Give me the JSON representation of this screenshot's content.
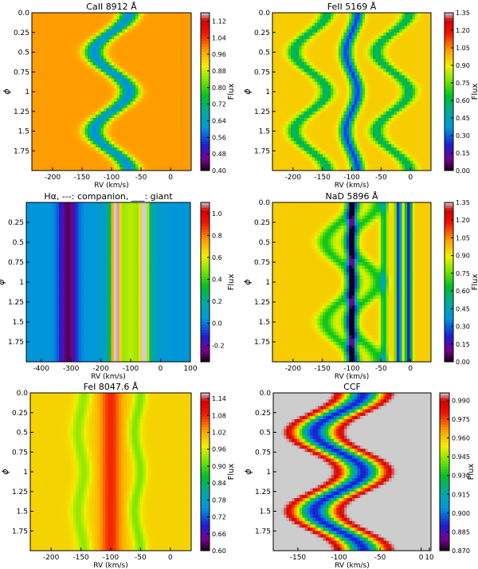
{
  "chart_data": [
    {
      "type": "heatmap",
      "title": "CaII 8912 Å",
      "xlabel": "RV (km/s)",
      "ylabel": "ϕ",
      "xlim": [
        -235,
        35
      ],
      "ylim": [
        0,
        2
      ],
      "xticks": [
        "-200",
        "-150",
        "-100",
        "-50",
        "0"
      ],
      "xtick_values": [
        -200,
        -150,
        -100,
        -50,
        0
      ],
      "yticks": [
        "0.0",
        "0.25",
        "0.5",
        "0.75",
        "1",
        "1.25",
        "1.5",
        "1.75"
      ],
      "colorbar_label": "Flux",
      "colorbar_ticks": [
        "0.40",
        "0.48",
        "0.56",
        "0.64",
        "0.72",
        "0.80",
        "0.88",
        "0.96",
        "1.04",
        "1.12"
      ],
      "colorbar_range": [
        0.4,
        1.16
      ],
      "features": [
        {
          "kind": "absorption",
          "rv_mean": -100,
          "rv_amp": 30,
          "phase_offset": 0.0,
          "width": 16,
          "value": 0.6
        }
      ],
      "background": 0.98
    },
    {
      "type": "heatmap",
      "title": "FeII 5169 Å",
      "xlabel": "RV (km/s)",
      "ylabel": "ϕ",
      "xlim": [
        -235,
        35
      ],
      "ylim": [
        0,
        2
      ],
      "xticks": [
        "-200",
        "-150",
        "-100",
        "-50",
        "0"
      ],
      "xtick_values": [
        -200,
        -150,
        -100,
        -50,
        0
      ],
      "yticks": [
        "0.0",
        "0.25",
        "0.5",
        "0.75",
        "1",
        "1.25",
        "1.5",
        "1.75"
      ],
      "colorbar_label": "Flux",
      "colorbar_ticks": [
        "0.00",
        "0.15",
        "0.30",
        "0.45",
        "0.60",
        "0.75",
        "0.90",
        "1.05",
        "1.20",
        "1.35"
      ],
      "colorbar_range": [
        0.0,
        1.35
      ],
      "features": [
        {
          "kind": "absorption",
          "rv_mean": -170,
          "rv_amp": 28,
          "phase_offset": 0.0,
          "width": 12,
          "value": 0.55
        },
        {
          "kind": "absorption",
          "rv_mean": -100,
          "rv_amp": 10,
          "phase_offset": 0.0,
          "width": 10,
          "value": 0.25
        },
        {
          "kind": "absorption",
          "rv_mean": -30,
          "rv_amp": 28,
          "phase_offset": 0.0,
          "width": 12,
          "value": 0.55
        }
      ],
      "background": 0.95
    },
    {
      "type": "heatmap",
      "title": "Hα, ---: companion, ___: giant",
      "xlabel": "RV (km/s)",
      "ylabel": "ϕ",
      "xlim": [
        -450,
        100
      ],
      "ylim": [
        0,
        2
      ],
      "xticks": [
        "-400",
        "-300",
        "-200",
        "-100",
        "0",
        "100"
      ],
      "xtick_values": [
        -400,
        -300,
        -200,
        -100,
        0,
        100
      ],
      "yticks": [
        "0.25",
        "0.5",
        "0.75",
        "1",
        "1.25",
        "1.5",
        "1.75"
      ],
      "colorbar_label": "Flux",
      "colorbar_ticks": [
        "-0.2",
        "0.0",
        "0.2",
        "0.4",
        "0.6",
        "0.8",
        "1.0"
      ],
      "colorbar_range": [
        -0.35,
        1.1
      ],
      "features": [
        {
          "kind": "emission",
          "rv_mean": -100,
          "rv_amp": 0,
          "phase_offset": 0.0,
          "width": 60,
          "value": 0.55
        },
        {
          "kind": "absorption",
          "rv_mean": -310,
          "rv_amp": 0,
          "phase_offset": 0.0,
          "width": 30,
          "value": -0.3
        },
        {
          "kind": "emission",
          "rv_mean": -150,
          "rv_amp": 0,
          "phase_offset": 0.0,
          "width": 14,
          "value": 1.0
        },
        {
          "kind": "emission",
          "rv_mean": -55,
          "rv_amp": 0,
          "phase_offset": 0.0,
          "width": 12,
          "value": 0.95
        }
      ],
      "background": 0.05
    },
    {
      "type": "heatmap",
      "title": "NaD 5896 Å",
      "xlabel": "RV (km/s)",
      "ylabel": "ϕ",
      "xlim": [
        -235,
        35
      ],
      "ylim": [
        0,
        2
      ],
      "xticks": [
        "-200",
        "-150",
        "-100",
        "-50",
        "0"
      ],
      "xtick_values": [
        -200,
        -150,
        -100,
        -50,
        0
      ],
      "yticks": [
        "0.0",
        "0.25",
        "0.5",
        "0.75",
        "1",
        "1.25",
        "1.5",
        "1.75"
      ],
      "colorbar_label": "Flux",
      "colorbar_ticks": [
        "0.00",
        "0.15",
        "0.30",
        "0.45",
        "0.60",
        "0.75",
        "0.90",
        "1.05",
        "1.20",
        "1.35"
      ],
      "colorbar_range": [
        0.0,
        1.35
      ],
      "features": [
        {
          "kind": "absorption",
          "rv_mean": -100,
          "rv_amp": 0,
          "phase_offset": 0.0,
          "width": 8,
          "value": 0.15
        },
        {
          "kind": "absorption",
          "rv_mean": -45,
          "rv_amp": 0,
          "phase_offset": 0.0,
          "width": 6,
          "value": 0.6
        },
        {
          "kind": "absorption",
          "rv_mean": -20,
          "rv_amp": 0,
          "phase_offset": 0.0,
          "width": 5,
          "value": 0.2
        },
        {
          "kind": "absorption",
          "rv_mean": -3,
          "rv_amp": 0,
          "phase_offset": 0.0,
          "width": 5,
          "value": 0.2
        },
        {
          "kind": "absorption",
          "rv_mean": -80,
          "rv_amp": 25,
          "phase_offset": 0.0,
          "width": 14,
          "value": 0.65
        },
        {
          "kind": "absorption",
          "rv_mean": -120,
          "rv_amp": 25,
          "phase_offset": 0.0,
          "width": 14,
          "value": 0.65
        }
      ],
      "background": 0.95
    },
    {
      "type": "heatmap",
      "title": "FeI 8047.6 Å",
      "xlabel": "RV (km/s)",
      "ylabel": "ϕ",
      "xlim": [
        -235,
        35
      ],
      "ylim": [
        0,
        2
      ],
      "xticks": [
        "-200",
        "-150",
        "-100",
        "-50",
        "0"
      ],
      "xtick_values": [
        -200,
        -150,
        -100,
        -50,
        0
      ],
      "yticks": [
        "0.0",
        "0.25",
        "0.5",
        "0.75",
        "1",
        "1.25",
        "1.5",
        "1.75"
      ],
      "colorbar_label": "Flux",
      "colorbar_ticks": [
        "0.60",
        "0.66",
        "0.72",
        "0.78",
        "0.84",
        "0.90",
        "0.96",
        "1.02",
        "1.08",
        "1.14"
      ],
      "colorbar_range": [
        0.6,
        1.16
      ],
      "features": [
        {
          "kind": "emission",
          "rv_mean": -100,
          "rv_amp": 0,
          "phase_offset": 0.0,
          "width": 18,
          "value": 1.08
        },
        {
          "kind": "absorption",
          "rv_mean": -150,
          "rv_amp": 5,
          "phase_offset": 0.0,
          "width": 12,
          "value": 0.93
        },
        {
          "kind": "absorption",
          "rv_mean": -55,
          "rv_amp": 5,
          "phase_offset": 0.0,
          "width": 10,
          "value": 0.92
        }
      ],
      "background": 0.99
    },
    {
      "type": "heatmap",
      "title": "CCF",
      "xlabel": "RV (km/s)",
      "ylabel": "ϕ",
      "xlim": [
        -180,
        12
      ],
      "ylim": [
        0,
        2
      ],
      "xticks": [
        "-150",
        "-100",
        "-50",
        "0",
        "10"
      ],
      "xtick_values": [
        -150,
        -100,
        -50,
        0,
        10
      ],
      "yticks": [
        "0.0",
        "0.25",
        "0.5",
        "0.75",
        "1",
        "1.25",
        "1.5",
        "1.75"
      ],
      "colorbar_label": "Flux",
      "colorbar_ticks": [
        "0.870",
        "0.885",
        "0.900",
        "0.915",
        "0.930",
        "0.945",
        "0.960",
        "0.975",
        "0.990"
      ],
      "colorbar_range": [
        0.87,
        0.996
      ],
      "features": [
        {
          "kind": "absorption",
          "rv_mean": -100,
          "rv_amp": 30,
          "phase_offset": 0.0,
          "width": 22,
          "value": 0.89
        }
      ],
      "background": 1.0
    }
  ]
}
